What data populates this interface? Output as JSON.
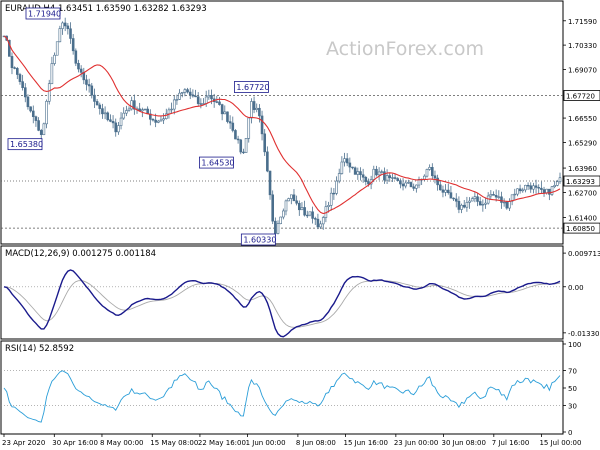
{
  "watermark": "ActionForex.com",
  "panels": {
    "price": {
      "title": "EURAUD,H4  1.63451 1.63590 1.63282 1.63293",
      "ylim": [
        1.6013,
        1.7246
      ],
      "ticks": [
        "1.71590",
        "1.70330",
        "1.69070",
        "1.66550",
        "1.65290",
        "1.63960",
        "1.62700",
        "1.61400"
      ],
      "tick_values": [
        1.7159,
        1.7033,
        1.6907,
        1.6655,
        1.6529,
        1.6396,
        1.627,
        1.614
      ],
      "hlines": [
        {
          "value": 1.6772,
          "label": "1.67720"
        },
        {
          "value": 1.6329,
          "label": "1.63293",
          "style": "price"
        },
        {
          "value": 1.6085,
          "label": "1.60850"
        }
      ],
      "annotations": [
        {
          "label": "1.71940",
          "index": 15,
          "value": 1.7194
        },
        {
          "label": "1.65380",
          "index": 9,
          "value": 1.6538
        },
        {
          "label": "1.67720",
          "index": 64,
          "value": 1.6772
        },
        {
          "label": "1.64530",
          "index": 62,
          "value": 1.6453
        },
        {
          "label": "1.60330",
          "index": 70,
          "value": 1.6033
        }
      ],
      "candle_color": "#4a6e8c",
      "ma_color": "#e03030"
    },
    "macd": {
      "title": "MACD(12,26,9) 0.001275 0.001184",
      "ylim": [
        -0.0145,
        0.0109
      ],
      "ticks": [
        "0.009713",
        "0.00",
        "-0.013302"
      ],
      "tick_values": [
        0.009713,
        0.0,
        -0.013302
      ],
      "main_color": "#1a1a8c",
      "signal_color": "#aaaaaa"
    },
    "rsi": {
      "title": "RSI(14) 52.8592",
      "ylim": [
        0,
        100
      ],
      "ticks": [
        "100",
        "70",
        "50",
        "30",
        "0"
      ],
      "tick_values": [
        100,
        70,
        50,
        30,
        0
      ],
      "levels": [
        70,
        30
      ],
      "color": "#2b9ed8"
    }
  },
  "x_labels": [
    {
      "label": "23 Apr 2020",
      "index": 0
    },
    {
      "label": "30 Apr 16:00",
      "index": 19
    },
    {
      "label": "8 May 00:00",
      "index": 37
    },
    {
      "label": "15 May 08:00",
      "index": 56
    },
    {
      "label": "22 May 16:00",
      "index": 74
    },
    {
      "label": "1 Jun 00:00",
      "index": 92
    },
    {
      "label": "8 Jun 08:00",
      "index": 111
    },
    {
      "label": "15 Jun 16:00",
      "index": 129
    },
    {
      "label": "23 Jun 00:00",
      "index": 148
    },
    {
      "label": "30 Jun 08:00",
      "index": 166
    },
    {
      "label": "7 Jul 16:00",
      "index": 185
    },
    {
      "label": "15 Jul 00:00",
      "index": 203
    }
  ],
  "chart_data": {
    "type": "line",
    "symbol": "EURAUD",
    "timeframe": "H4",
    "anchors": [
      [
        0,
        1.71
      ],
      [
        2,
        1.693
      ],
      [
        4,
        1.686
      ],
      [
        6,
        1.672
      ],
      [
        8,
        1.664
      ],
      [
        10,
        1.656
      ],
      [
        12,
        1.69
      ],
      [
        14,
        1.705
      ],
      [
        15,
        1.717
      ],
      [
        17,
        1.708
      ],
      [
        19,
        1.69
      ],
      [
        21,
        1.685
      ],
      [
        23,
        1.677
      ],
      [
        25,
        1.67
      ],
      [
        27,
        1.664
      ],
      [
        29,
        1.66
      ],
      [
        31,
        1.668
      ],
      [
        33,
        1.673
      ],
      [
        35,
        1.67
      ],
      [
        37,
        1.668
      ],
      [
        39,
        1.664
      ],
      [
        41,
        1.665
      ],
      [
        43,
        1.67
      ],
      [
        45,
        1.676
      ],
      [
        47,
        1.68
      ],
      [
        49,
        1.676
      ],
      [
        51,
        1.672
      ],
      [
        53,
        1.678
      ],
      [
        55,
        1.673
      ],
      [
        57,
        1.668
      ],
      [
        59,
        1.662
      ],
      [
        61,
        1.65
      ],
      [
        62,
        1.647
      ],
      [
        64,
        1.674
      ],
      [
        66,
        1.667
      ],
      [
        68,
        1.64
      ],
      [
        70,
        1.606
      ],
      [
        72,
        1.618
      ],
      [
        74,
        1.626
      ],
      [
        76,
        1.62
      ],
      [
        78,
        1.616
      ],
      [
        80,
        1.615
      ],
      [
        82,
        1.609
      ],
      [
        84,
        1.622
      ],
      [
        86,
        1.63
      ],
      [
        88,
        1.646
      ],
      [
        90,
        1.64
      ],
      [
        92,
        1.636
      ],
      [
        94,
        1.632
      ],
      [
        96,
        1.638
      ],
      [
        98,
        1.636
      ],
      [
        100,
        1.633
      ],
      [
        102,
        1.632
      ],
      [
        104,
        1.631
      ],
      [
        106,
        1.63
      ],
      [
        108,
        1.633
      ],
      [
        110,
        1.64
      ],
      [
        112,
        1.632
      ],
      [
        114,
        1.627
      ],
      [
        116,
        1.623
      ],
      [
        118,
        1.619
      ],
      [
        120,
        1.622
      ],
      [
        122,
        1.623
      ],
      [
        124,
        1.621
      ],
      [
        126,
        1.626
      ],
      [
        128,
        1.624
      ],
      [
        130,
        1.62
      ],
      [
        132,
        1.627
      ],
      [
        134,
        1.629
      ],
      [
        136,
        1.631
      ],
      [
        138,
        1.628
      ],
      [
        140,
        1.626
      ],
      [
        142,
        1.629
      ],
      [
        144,
        1.633
      ]
    ],
    "ma_period": 20,
    "price_ylim": [
      1.6013,
      1.7246
    ]
  }
}
